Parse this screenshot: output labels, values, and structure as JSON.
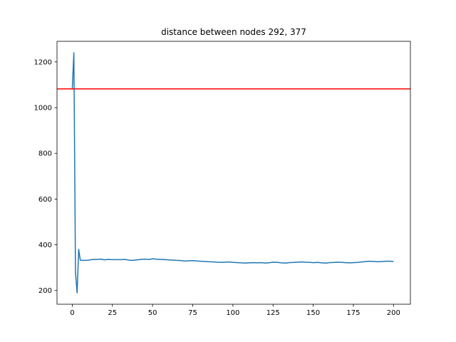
{
  "chart_data": {
    "type": "line",
    "title": "distance between nodes 292, 377",
    "xlabel": "",
    "ylabel": "",
    "xlim": [
      -9.5,
      210.5
    ],
    "ylim": [
      140,
      1290
    ],
    "x_ticks": [
      0,
      25,
      50,
      75,
      100,
      125,
      150,
      175,
      200
    ],
    "y_ticks": [
      200,
      400,
      600,
      800,
      1000,
      1200
    ],
    "grid": false,
    "legend": "none",
    "series": [
      {
        "color": "#1f77b4",
        "x": [
          0,
          1,
          2,
          3,
          4,
          5,
          6,
          8,
          10,
          12,
          15,
          18,
          20,
          22,
          25,
          28,
          30,
          33,
          35,
          38,
          40,
          43,
          45,
          48,
          50,
          52,
          55,
          58,
          60,
          63,
          65,
          68,
          70,
          73,
          75,
          78,
          80,
          83,
          85,
          88,
          90,
          93,
          95,
          98,
          100,
          103,
          105,
          108,
          110,
          113,
          115,
          118,
          120,
          123,
          125,
          128,
          130,
          133,
          135,
          138,
          140,
          143,
          145,
          148,
          150,
          153,
          155,
          158,
          160,
          163,
          165,
          168,
          170,
          173,
          175,
          178,
          180,
          183,
          185,
          188,
          190,
          193,
          195,
          198,
          200
        ],
        "y": [
          1080,
          1240,
          280,
          190,
          380,
          333,
          332,
          332,
          333,
          335,
          336,
          337,
          334,
          336,
          335,
          335,
          335,
          336,
          333,
          332,
          334,
          336,
          337,
          336,
          339,
          337,
          336,
          335,
          334,
          333,
          332,
          331,
          329,
          330,
          331,
          329,
          328,
          327,
          326,
          325,
          324,
          323,
          324,
          325,
          323,
          322,
          321,
          320,
          321,
          322,
          321,
          322,
          320,
          322,
          324,
          323,
          321,
          320,
          322,
          323,
          324,
          325,
          324,
          323,
          322,
          323,
          321,
          320,
          322,
          323,
          324,
          323,
          322,
          321,
          322,
          323,
          325,
          327,
          328,
          327,
          326,
          327,
          328,
          328,
          327
        ]
      },
      {
        "color": "#ff0000",
        "x": [
          -9.5,
          210.5
        ],
        "y": [
          1082,
          1082
        ]
      }
    ]
  }
}
